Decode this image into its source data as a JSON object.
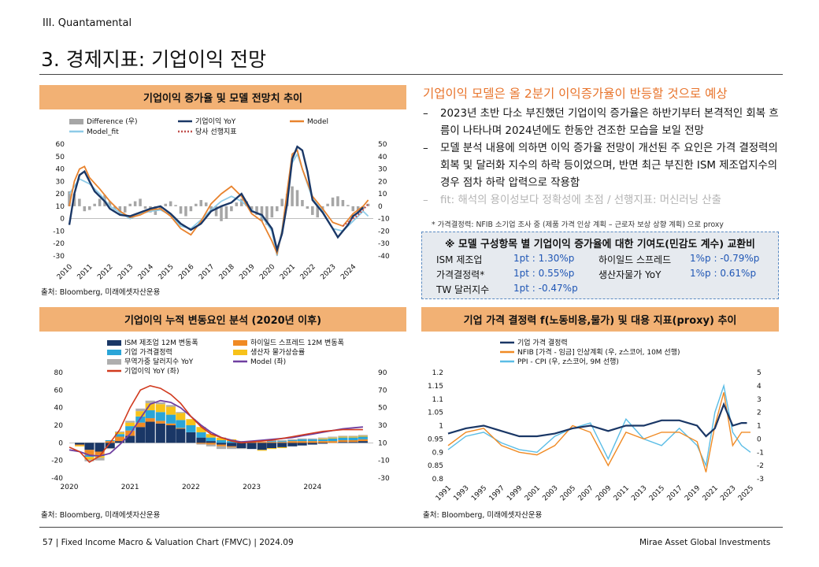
{
  "header": {
    "section": "III. Quantamental",
    "title": "3. 경제지표: 기업이익 전망"
  },
  "charts": {
    "c1_title": "기업이익 증가율 및 모델 전망치 추이",
    "c2_title": "기업이익 누적 변동요인 분석 (2020년 이후)",
    "c3_title": "기업 가격 결정력 f(노동비용,물가) 및 대용 지표(proxy) 추이",
    "source": "출처: Bloomberg, 미래에셋자산운용"
  },
  "commentary": {
    "headline": "기업이익 모델은 올 2분기 이익증가율이 반등할 것으로 예상",
    "bullets": [
      "2023년 초반 다소 부진했던 기업이익 증가율은 하반기부터 본격적인 회복 흐름이 나타나며 2024년에도 한동안 견조한 모습을 보일 전망",
      "모델 분석 내용에 의하면 이익 증가율 전망이 개선된 주 요인은 가격 결정력의 회복 및 달러화 지수의 하락 등이었으며, 반면 최근 부진한 ISM 제조업지수의 경우 점차 하락 압력으로 작용함",
      "fit: 해석의 용이성보다 정확성에 초점 / 선행지표: 머신러닝 산출"
    ],
    "bullet_dash": "–",
    "note": "* 가격결정력: NFIB 소기업 조사 중 (제품 가격 인상 계획 – 근로자 보상 상향 계획) 으로 proxy"
  },
  "contrib_box": {
    "title": "※ 모델 구성항목 별 기업이익 증가율에 대한 기여도(민감도 계수) 교환비",
    "rows": [
      {
        "label": "ISM 제조업",
        "value": "1pt : 1.30%p"
      },
      {
        "label": "가격결정력*",
        "value": "1pt : 0.55%p"
      },
      {
        "label": "TW 달러지수",
        "value": "1pt : -0.47%p"
      },
      {
        "label": "하이일드 스프레드",
        "value": "1%p : -0.79%p"
      },
      {
        "label": "생산자물가 YoY",
        "value": "1%p : 0.61%p"
      }
    ]
  },
  "footer": {
    "left": "57 | Fixed Income Macro & Valuation Chart (FMVC) | 2024.09",
    "right": "Mirae Asset Global Investments"
  },
  "chart_data": [
    {
      "type": "line",
      "x_type": "year-fraction",
      "x_range": [
        2010,
        2025
      ],
      "x_ticks": [
        "2010",
        "2011",
        "2012",
        "2013",
        "2014",
        "2015",
        "2016",
        "2017",
        "2018",
        "2019",
        "2020",
        "2021",
        "2022",
        "2023",
        "2024"
      ],
      "ylim_left": [
        -30,
        60
      ],
      "yticks_left": [
        -30,
        -20,
        -10,
        0,
        10,
        20,
        30,
        40,
        50,
        60
      ],
      "ylim_right": [
        -40,
        50
      ],
      "yticks_right": [
        -40,
        -30,
        -20,
        -10,
        0,
        10,
        20,
        30,
        40,
        50
      ],
      "legend": [
        "Difference (우)",
        "기업이익 YoY",
        "Model",
        "Model_fit",
        "당사 선행지표"
      ],
      "colors": {
        "diff": "#a6a6a6",
        "yoy": "#1a3766",
        "model": "#e8832e",
        "fit": "#8ecbe8",
        "lead": "#c0504d"
      },
      "series": [
        {
          "name": "기업이익 YoY",
          "x": [
            2010,
            2010.25,
            2010.5,
            2010.75,
            2011,
            2011.25,
            2011.5,
            2011.75,
            2012,
            2012.5,
            2013,
            2013.5,
            2014,
            2014.5,
            2015,
            2015.5,
            2016,
            2016.5,
            2017,
            2017.5,
            2018,
            2018.5,
            2019,
            2019.5,
            2020,
            2020.25,
            2020.5,
            2020.75,
            2021,
            2021.25,
            2021.5,
            2021.75,
            2022,
            2022.5,
            2023,
            2023.25,
            2023.5,
            2023.75,
            2024,
            2024.25,
            2024.5
          ],
          "y": [
            -5,
            20,
            35,
            38,
            30,
            22,
            18,
            14,
            8,
            3,
            2,
            5,
            8,
            10,
            4,
            -4,
            -9,
            -4,
            6,
            10,
            13,
            20,
            6,
            3,
            -8,
            -25,
            -12,
            12,
            48,
            58,
            55,
            38,
            15,
            5,
            -8,
            -15,
            -10,
            -5,
            2,
            5,
            9
          ]
        },
        {
          "name": "Model",
          "x": [
            2010,
            2010.25,
            2010.5,
            2010.75,
            2011,
            2011.5,
            2012,
            2012.5,
            2013,
            2013.5,
            2014,
            2014.5,
            2015,
            2015.5,
            2016,
            2016.5,
            2017,
            2017.5,
            2018,
            2018.5,
            2019,
            2019.5,
            2020,
            2020.25,
            2020.5,
            2020.75,
            2021,
            2021.25,
            2021.5,
            2022,
            2022.5,
            2023,
            2023.5,
            2024,
            2024.5,
            2024.75
          ],
          "y": [
            10,
            30,
            40,
            42,
            33,
            24,
            14,
            6,
            1,
            3,
            7,
            8,
            2,
            -8,
            -13,
            -2,
            12,
            20,
            26,
            18,
            4,
            -2,
            -18,
            -28,
            -10,
            22,
            52,
            55,
            40,
            18,
            8,
            -3,
            -6,
            4,
            10,
            15
          ]
        },
        {
          "name": "Model_fit",
          "x": [
            2010,
            2010.5,
            2011,
            2011.5,
            2012,
            2012.5,
            2013,
            2013.5,
            2014,
            2014.5,
            2015,
            2015.5,
            2016,
            2016.5,
            2017,
            2017.5,
            2018,
            2018.5,
            2019,
            2019.5,
            2020,
            2020.25,
            2020.5,
            2020.75,
            2021,
            2021.25,
            2021.5,
            2022,
            2022.5,
            2023,
            2023.5,
            2024,
            2024.5,
            2024.75
          ],
          "y": [
            20,
            32,
            28,
            20,
            10,
            5,
            0,
            4,
            6,
            7,
            3,
            -6,
            -8,
            -1,
            7,
            14,
            18,
            14,
            7,
            2,
            -10,
            -30,
            -8,
            20,
            45,
            52,
            40,
            16,
            6,
            -8,
            -10,
            -2,
            6,
            2
          ]
        },
        {
          "name": "당사 선행지표",
          "x": [
            2023.5,
            2023.75,
            2024,
            2024.25,
            2024.5,
            2024.75
          ],
          "y": [
            -6,
            -3,
            0,
            3,
            7,
            12
          ]
        }
      ],
      "difference": {
        "name": "Difference (우)",
        "x_start": 2010,
        "step": 0.25,
        "values": [
          12,
          10,
          6,
          -4,
          -3,
          2,
          6,
          9,
          4,
          -3,
          -7,
          -5,
          2,
          4,
          6,
          -2,
          -5,
          -7,
          -3,
          2,
          4,
          1,
          -6,
          -8,
          -4,
          2,
          5,
          3,
          -3,
          -8,
          -12,
          -10,
          -4,
          3,
          6,
          4,
          -3,
          -7,
          -12,
          -15,
          -9,
          -4,
          6,
          10,
          16,
          13,
          5,
          -2,
          -7,
          -9,
          -5,
          2,
          7,
          8,
          5,
          1,
          -4,
          -6,
          -2,
          2
        ]
      }
    },
    {
      "type": "bar",
      "stacked": true,
      "x_range": [
        2020,
        2025
      ],
      "x_ticks": [
        "2020",
        "2021",
        "2022",
        "2023",
        "2024"
      ],
      "ylim_left": [
        -40,
        80
      ],
      "yticks_left": [
        -40,
        -20,
        0,
        20,
        40,
        60,
        80
      ],
      "ylim_right": [
        -30,
        90
      ],
      "yticks_right": [
        -30,
        -10,
        10,
        30,
        50,
        70,
        90
      ],
      "legend": [
        "ISM 제조업 12M 변동폭",
        "하이일드 스프레드 12M 변동폭",
        "기업 가격결정력",
        "생산자 물가상승률",
        "무역가중 달러지수 YoY",
        "Model (좌)",
        "기업이익 YoY (좌)"
      ],
      "colors": {
        "ism": "#1a3766",
        "hy": "#f08a24",
        "pricing": "#2aa5d8",
        "ppi": "#f7c21a",
        "dollar": "#aeaeae",
        "model": "#6f3fa0",
        "yoy": "#d13a1e"
      },
      "x": [
        2020,
        2020.17,
        2020.33,
        2020.5,
        2020.67,
        2020.83,
        2021,
        2021.17,
        2021.33,
        2021.5,
        2021.67,
        2021.83,
        2022,
        2022.17,
        2022.33,
        2022.5,
        2022.67,
        2022.83,
        2023,
        2023.17,
        2023.33,
        2023.5,
        2023.67,
        2023.83,
        2024,
        2024.17,
        2024.33,
        2024.5,
        2024.67,
        2024.83
      ],
      "series": [
        {
          "name": "ISM 제조업 12M 변동폭",
          "values": [
            0,
            -2,
            -8,
            -10,
            -6,
            2,
            8,
            18,
            24,
            22,
            20,
            16,
            12,
            6,
            2,
            -2,
            -4,
            -6,
            -7,
            -8,
            -6,
            -5,
            -4,
            -3,
            -2,
            -1,
            0,
            1,
            1,
            2
          ]
        },
        {
          "name": "하이일드 스프레드 12M 변동폭",
          "values": [
            0,
            -1,
            -6,
            -4,
            2,
            5,
            6,
            5,
            4,
            3,
            2,
            1,
            0,
            -1,
            -2,
            -2,
            -1,
            0,
            1,
            1,
            1,
            1,
            2,
            2,
            2,
            2,
            2,
            2,
            2,
            2
          ]
        },
        {
          "name": "기업 가격결정력",
          "values": [
            0,
            0,
            -2,
            -1,
            1,
            3,
            5,
            7,
            9,
            10,
            10,
            9,
            8,
            6,
            4,
            3,
            2,
            1,
            0,
            0,
            1,
            1,
            1,
            2,
            2,
            2,
            3,
            3,
            3,
            3
          ]
        },
        {
          "name": "생산자 물가상승률",
          "values": [
            0,
            -1,
            -3,
            -2,
            0,
            2,
            4,
            6,
            8,
            9,
            9,
            8,
            7,
            6,
            4,
            3,
            2,
            1,
            0,
            -1,
            -1,
            -1,
            0,
            0,
            0,
            1,
            1,
            1,
            1,
            1
          ]
        },
        {
          "name": "무역가중 달러지수 YoY",
          "values": [
            0,
            0,
            -2,
            -3,
            -1,
            1,
            2,
            3,
            3,
            2,
            2,
            1,
            0,
            -1,
            -2,
            -3,
            -2,
            -1,
            0,
            0,
            1,
            1,
            1,
            1,
            1,
            1,
            1,
            1,
            1,
            1
          ]
        },
        {
          "name": "Model (좌)",
          "type": "line",
          "values": [
            -8,
            -10,
            -14,
            -15,
            -12,
            -2,
            10,
            28,
            44,
            48,
            46,
            40,
            30,
            20,
            12,
            6,
            3,
            1,
            2,
            3,
            4,
            5,
            6,
            8,
            10,
            12,
            14,
            16,
            17,
            18
          ]
        },
        {
          "name": "기업이익 YoY (좌)",
          "type": "line",
          "values": [
            -5,
            -10,
            -22,
            -15,
            0,
            15,
            40,
            60,
            65,
            62,
            55,
            45,
            30,
            18,
            10,
            6,
            2,
            0,
            1,
            2,
            3,
            5,
            7,
            9,
            11,
            13,
            14,
            15,
            15,
            15
          ]
        }
      ]
    },
    {
      "type": "line",
      "x_range": [
        1991,
        2025
      ],
      "x_ticks": [
        "1991",
        "1993",
        "1995",
        "1997",
        "1999",
        "2001",
        "2003",
        "2005",
        "2007",
        "2009",
        "2011",
        "2013",
        "2015",
        "2017",
        "2019",
        "2021",
        "2023",
        "2025"
      ],
      "ylim_left": [
        0.8,
        1.2
      ],
      "yticks_left": [
        "0.8",
        "0.85",
        "0.9",
        "0.95",
        "1",
        "1.05",
        "1.1",
        "1.15",
        "1.2"
      ],
      "ylim_right": [
        -3,
        5
      ],
      "yticks_right": [
        -3,
        -2,
        -1,
        0,
        1,
        2,
        3,
        4,
        5
      ],
      "legend": [
        "기업 가격 결정력",
        "NFIB [가격 - 임금] 인상계획 (우, z스코어, 10M 선행)",
        "PPI - CPI (우, z스코어, 9M 선행)"
      ],
      "colors": {
        "pricing": "#1a3766",
        "nfib": "#f08a24",
        "ppi_cpi": "#5bbde6"
      },
      "series": [
        {
          "name": "기업 가격 결정력",
          "x": [
            1991,
            1993,
            1995,
            1997,
            1999,
            2001,
            2003,
            2005,
            2007,
            2009,
            2011,
            2013,
            2015,
            2017,
            2019,
            2020,
            2021,
            2022,
            2023,
            2024,
            2024.6
          ],
          "y": [
            0.97,
            0.99,
            1.0,
            0.98,
            0.96,
            0.96,
            0.97,
            0.99,
            1.0,
            0.98,
            1.0,
            1.0,
            1.02,
            1.02,
            1.0,
            0.96,
            0.99,
            1.08,
            1.0,
            1.01,
            1.01
          ]
        },
        {
          "name": "NFIB [가격 - 임금] 인상계획 (우, z스코어, 10M 선행)",
          "x": [
            1991,
            1993,
            1995,
            1997,
            1999,
            2001,
            2003,
            2005,
            2007,
            2009,
            2011,
            2013,
            2015,
            2017,
            2019,
            2020,
            2021,
            2022,
            2023,
            2024,
            2025
          ],
          "y": [
            -0.5,
            0.5,
            0.8,
            -0.5,
            -1.0,
            -1.2,
            -0.5,
            1.0,
            0.5,
            -2.0,
            0.5,
            0.0,
            0.5,
            0.5,
            -0.2,
            -2.5,
            1.0,
            3.5,
            -0.5,
            0.5,
            0.5
          ]
        },
        {
          "name": "PPI - CPI (우, z스코어, 9M 선행)",
          "x": [
            1991,
            1993,
            1995,
            1997,
            1999,
            2001,
            2003,
            2005,
            2007,
            2009,
            2011,
            2013,
            2015,
            2017,
            2019,
            2020,
            2021,
            2022,
            2023,
            2024,
            2025
          ],
          "y": [
            -0.8,
            0.2,
            0.5,
            -0.3,
            -0.8,
            -1.0,
            0.2,
            0.8,
            1.2,
            -1.5,
            1.5,
            0.0,
            -0.5,
            0.8,
            -0.5,
            -2.0,
            2.0,
            4.0,
            0.5,
            -0.5,
            -1.0
          ]
        }
      ]
    }
  ]
}
